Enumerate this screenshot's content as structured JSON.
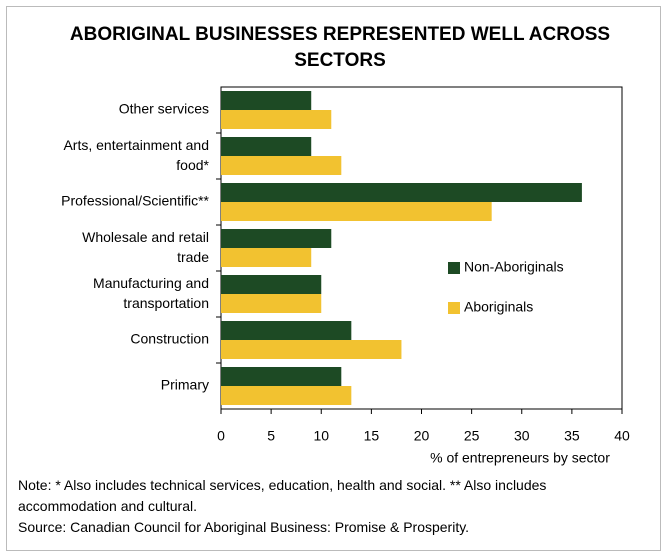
{
  "chart_data": {
    "type": "barh",
    "title": "ABORIGINAL BUSINESSES REPRESENTED WELL ACROSS SECTORS",
    "categories": [
      "Other services",
      "Arts, entertainment and\nfood*",
      "Professional/Scientific**",
      "Wholesale and retail\ntrade",
      "Manufacturing and\ntransportation",
      "Construction",
      "Primary"
    ],
    "series": [
      {
        "name": "Non-Aboriginals",
        "color": "#1d4a24",
        "values": [
          9,
          9,
          36,
          11,
          10,
          13,
          12
        ]
      },
      {
        "name": "Aboriginals",
        "color": "#f2c230",
        "values": [
          11,
          12,
          27,
          9,
          10,
          18,
          13
        ]
      }
    ],
    "xlim": [
      0,
      40
    ],
    "xticks": [
      0,
      5,
      10,
      15,
      20,
      25,
      30,
      35,
      40
    ],
    "xlabel": "% of entrepreneurs by sector",
    "legend": "right",
    "note": "Note: * Also includes technical services, education, health and social. ** Also includes accommodation and cultural.",
    "source": "Source: Canadian Council for Aboriginal Business: Promise & Prosperity."
  }
}
